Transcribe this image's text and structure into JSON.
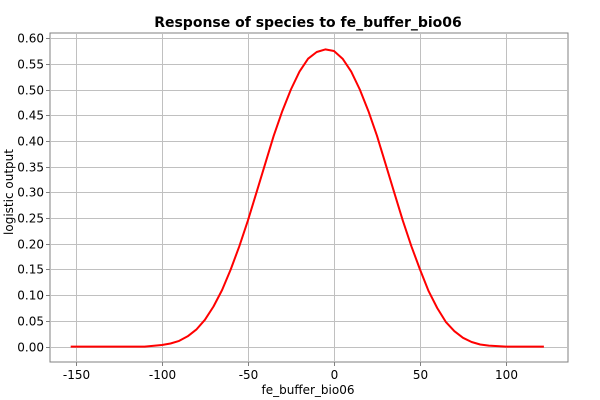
{
  "chart_data": {
    "type": "line",
    "title": "Response of species to fe_buffer_bio06",
    "xlabel": "fe_buffer_bio06",
    "ylabel": "logistic output",
    "xlim": [
      -165,
      136
    ],
    "ylim": [
      -0.03,
      0.61
    ],
    "x_ticks": [
      -150,
      -100,
      -50,
      0,
      50,
      100
    ],
    "y_ticks": [
      0.0,
      0.05,
      0.1,
      0.15,
      0.2,
      0.25,
      0.3,
      0.35,
      0.4,
      0.45,
      0.5,
      0.55,
      0.6
    ],
    "x_tick_labels": [
      "-150",
      "-100",
      "-50",
      "0",
      "50",
      "100"
    ],
    "y_tick_labels": [
      "0.00",
      "0.05",
      "0.10",
      "0.15",
      "0.20",
      "0.25",
      "0.30",
      "0.35",
      "0.40",
      "0.45",
      "0.50",
      "0.55",
      "0.60"
    ],
    "grid": true,
    "series": [
      {
        "color": "#ff0000",
        "x": [
          -153,
          -130,
          -110,
          -100,
          -95,
          -90,
          -85,
          -80,
          -75,
          -70,
          -65,
          -60,
          -55,
          -50,
          -45,
          -40,
          -35,
          -30,
          -25,
          -20,
          -15,
          -10,
          -5,
          0,
          5,
          10,
          15,
          20,
          25,
          30,
          35,
          40,
          45,
          50,
          55,
          60,
          65,
          70,
          75,
          80,
          85,
          90,
          95,
          100,
          110,
          122
        ],
        "y": [
          0.0,
          0.0,
          0.0,
          0.003,
          0.006,
          0.011,
          0.02,
          0.033,
          0.052,
          0.078,
          0.11,
          0.15,
          0.195,
          0.245,
          0.3,
          0.355,
          0.41,
          0.458,
          0.5,
          0.535,
          0.56,
          0.573,
          0.578,
          0.575,
          0.56,
          0.535,
          0.5,
          0.458,
          0.41,
          0.355,
          0.3,
          0.245,
          0.195,
          0.15,
          0.108,
          0.075,
          0.048,
          0.03,
          0.017,
          0.009,
          0.004,
          0.002,
          0.001,
          0.0,
          0.0,
          0.0
        ]
      }
    ]
  }
}
